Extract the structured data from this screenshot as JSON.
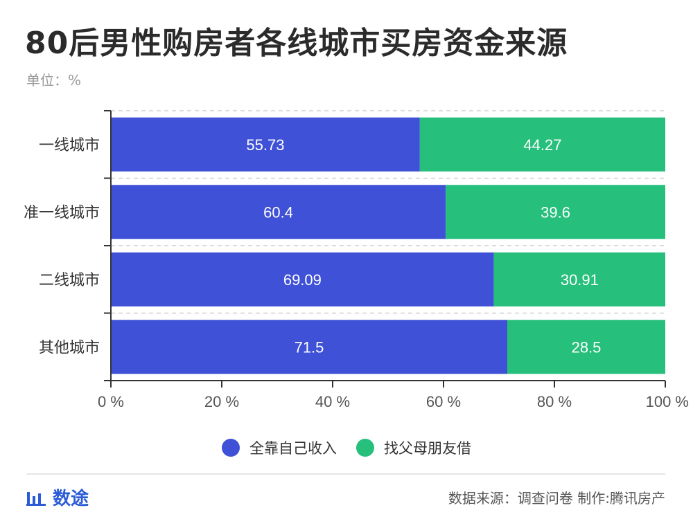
{
  "title": "80后男性购房者各线城市买房资金来源",
  "unit_label": "单位：%",
  "colors": {
    "self": "#3f51d6",
    "parents": "#27bf7c",
    "gridline": "#d0d0d0",
    "axis": "#333333"
  },
  "chart_data": {
    "type": "bar",
    "orientation": "horizontal",
    "stacked": true,
    "categories": [
      "一线城市",
      "准一线城市",
      "二线城市",
      "其他城市"
    ],
    "series": [
      {
        "name": "全靠自己收入",
        "values": [
          55.73,
          60.4,
          69.09,
          71.5
        ]
      },
      {
        "name": "找父母朋友借",
        "values": [
          44.27,
          39.6,
          30.91,
          28.5
        ]
      }
    ],
    "xlim": [
      0,
      100
    ],
    "xticks": [
      0,
      20,
      40,
      60,
      80,
      100
    ],
    "xtick_labels": [
      "0 %",
      "20 %",
      "40 %",
      "60 %",
      "80 %",
      "100 %"
    ],
    "legend_position": "bottom",
    "grid": true
  },
  "legend": [
    {
      "label": "全靠自己收入",
      "icon": "circle-icon"
    },
    {
      "label": "找父母朋友借",
      "icon": "circle-icon"
    }
  ],
  "footer": {
    "brand": "数途",
    "brand_icon": "bar-chart-icon",
    "source": "数据来源：调查问卷   制作:腾讯房产"
  }
}
